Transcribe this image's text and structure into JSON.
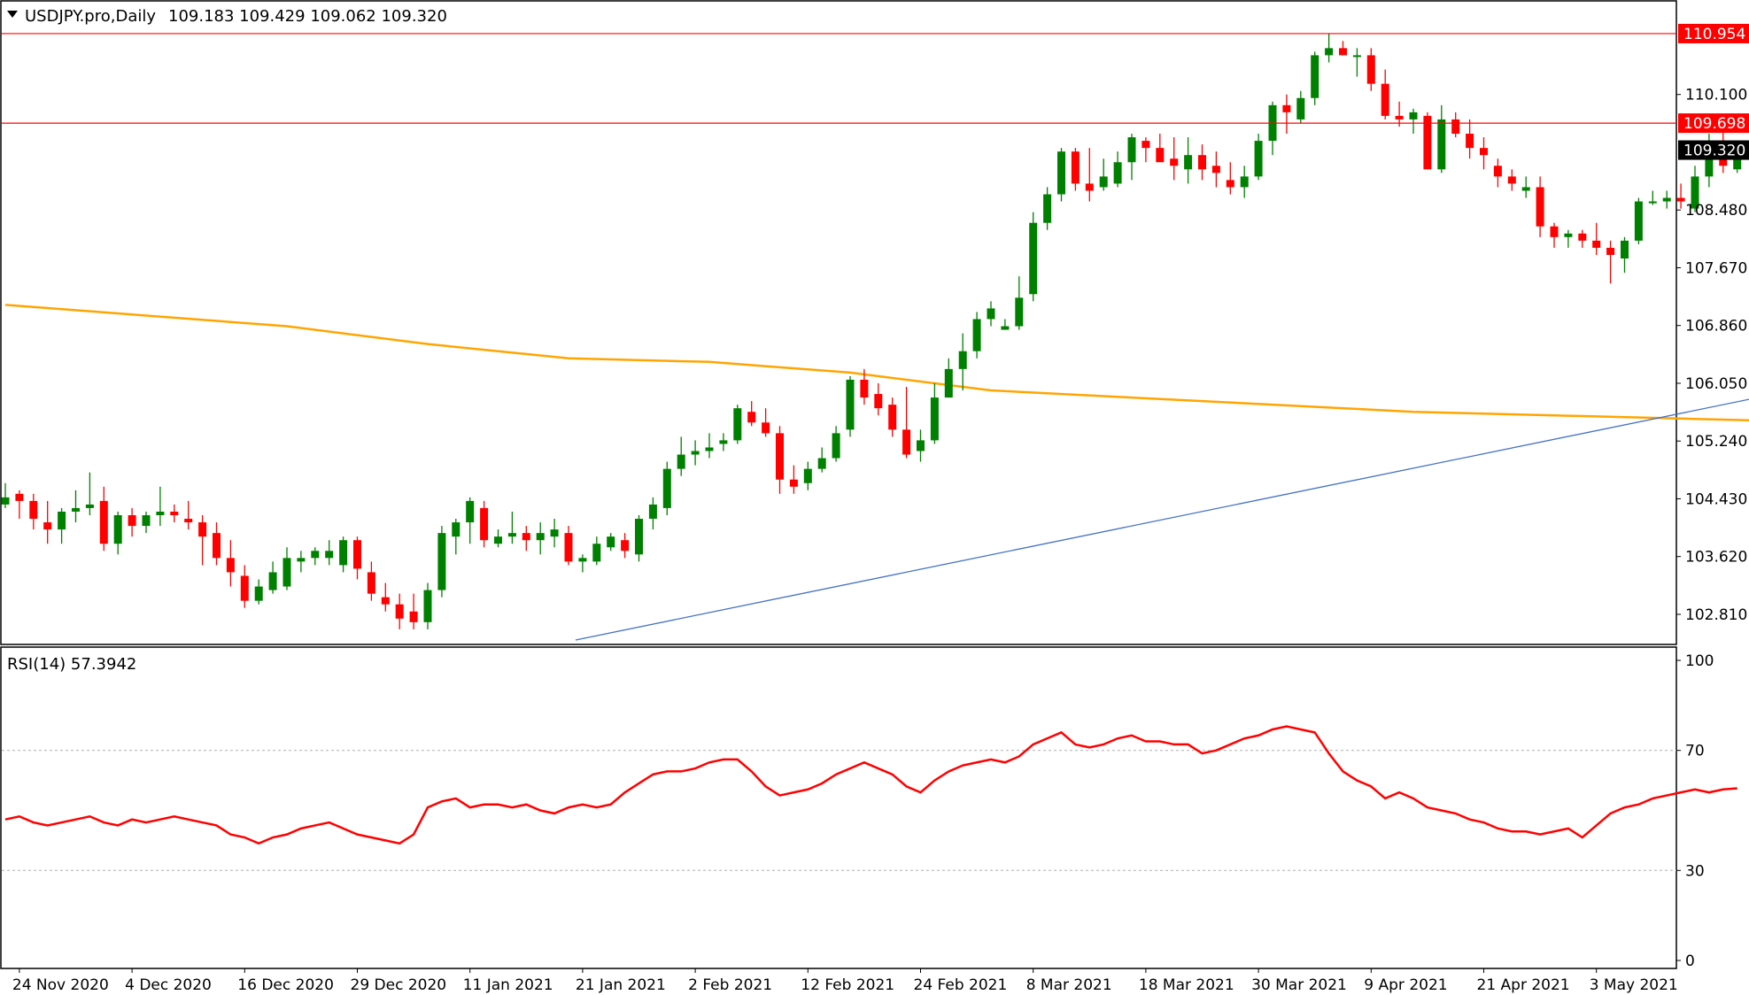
{
  "header": {
    "symbol": "USDJPY.pro,Daily",
    "ohlc": "109.183 109.429 109.062 109.320"
  },
  "rsi_label": "RSI(14) 57.3942",
  "colors": {
    "bull": "#008000",
    "bear": "#ff0000",
    "ma": "#ffa500",
    "trendline": "#4472c4",
    "hline": "#ff0000",
    "rsi": "#ff0000",
    "current_price_box": "#000000"
  },
  "chart_data": [
    {
      "type": "candlestick",
      "title": "",
      "ylim": [
        102.4,
        111.4
      ],
      "y_ticks": [
        "110.100",
        "108.480",
        "107.670",
        "106.860",
        "106.050",
        "105.240",
        "104.430",
        "103.620",
        "102.810"
      ],
      "x_labels": [
        "24 Nov 2020",
        "4 Dec 2020",
        "16 Dec 2020",
        "29 Dec 2020",
        "11 Jan 2021",
        "21 Jan 2021",
        "2 Feb 2021",
        "12 Feb 2021",
        "24 Feb 2021",
        "8 Mar 2021",
        "18 Mar 2021",
        "30 Mar 2021",
        "9 Apr 2021",
        "21 Apr 2021",
        "3 May 2021"
      ],
      "x_label_index": [
        1,
        9,
        17,
        25,
        33,
        41,
        49,
        57,
        65,
        73,
        81,
        89,
        97,
        105,
        113
      ],
      "candles": [
        [
          104.35,
          104.65,
          104.3,
          104.45
        ],
        [
          104.5,
          104.55,
          104.15,
          104.4
        ],
        [
          104.4,
          104.5,
          104.0,
          104.15
        ],
        [
          104.1,
          104.4,
          103.8,
          104.0
        ],
        [
          104.0,
          104.3,
          103.8,
          104.25
        ],
        [
          104.25,
          104.55,
          104.1,
          104.3
        ],
        [
          104.3,
          104.8,
          104.2,
          104.35
        ],
        [
          104.4,
          104.6,
          103.7,
          103.8
        ],
        [
          103.8,
          104.25,
          103.65,
          104.2
        ],
        [
          104.2,
          104.3,
          103.9,
          104.05
        ],
        [
          104.05,
          104.25,
          103.95,
          104.2
        ],
        [
          104.2,
          104.6,
          104.05,
          104.25
        ],
        [
          104.25,
          104.35,
          104.1,
          104.2
        ],
        [
          104.15,
          104.4,
          104.0,
          104.1
        ],
        [
          104.1,
          104.2,
          103.5,
          103.9
        ],
        [
          103.95,
          104.1,
          103.5,
          103.6
        ],
        [
          103.6,
          103.85,
          103.2,
          103.4
        ],
        [
          103.35,
          103.5,
          102.9,
          103.0
        ],
        [
          103.0,
          103.3,
          102.95,
          103.2
        ],
        [
          103.15,
          103.55,
          103.1,
          103.4
        ],
        [
          103.2,
          103.75,
          103.15,
          103.6
        ],
        [
          103.55,
          103.7,
          103.4,
          103.6
        ],
        [
          103.6,
          103.75,
          103.5,
          103.7
        ],
        [
          103.6,
          103.85,
          103.5,
          103.7
        ],
        [
          103.5,
          103.9,
          103.4,
          103.85
        ],
        [
          103.85,
          103.9,
          103.3,
          103.45
        ],
        [
          103.4,
          103.55,
          103.0,
          103.1
        ],
        [
          103.05,
          103.25,
          102.85,
          102.95
        ],
        [
          102.95,
          103.1,
          102.6,
          102.75
        ],
        [
          102.85,
          103.1,
          102.6,
          102.7
        ],
        [
          102.7,
          103.25,
          102.6,
          103.15
        ],
        [
          103.15,
          104.05,
          103.05,
          103.95
        ],
        [
          103.9,
          104.15,
          103.65,
          104.1
        ],
        [
          104.1,
          104.45,
          103.8,
          104.4
        ],
        [
          104.3,
          104.4,
          103.75,
          103.85
        ],
        [
          103.8,
          104.0,
          103.75,
          103.9
        ],
        [
          103.9,
          104.25,
          103.8,
          103.95
        ],
        [
          103.95,
          104.05,
          103.7,
          103.85
        ],
        [
          103.85,
          104.1,
          103.65,
          103.95
        ],
        [
          103.9,
          104.15,
          103.75,
          104.0
        ],
        [
          103.95,
          104.05,
          103.5,
          103.55
        ],
        [
          103.55,
          103.65,
          103.4,
          103.6
        ],
        [
          103.55,
          103.9,
          103.5,
          103.8
        ],
        [
          103.75,
          103.95,
          103.7,
          103.9
        ],
        [
          103.85,
          103.95,
          103.6,
          103.7
        ],
        [
          103.65,
          104.2,
          103.55,
          104.15
        ],
        [
          104.15,
          104.45,
          104.0,
          104.35
        ],
        [
          104.3,
          104.95,
          104.2,
          104.85
        ],
        [
          104.85,
          105.3,
          104.75,
          105.05
        ],
        [
          105.05,
          105.25,
          104.9,
          105.1
        ],
        [
          105.1,
          105.35,
          105.0,
          105.15
        ],
        [
          105.2,
          105.35,
          105.1,
          105.25
        ],
        [
          105.25,
          105.75,
          105.2,
          105.7
        ],
        [
          105.65,
          105.8,
          105.45,
          105.5
        ],
        [
          105.5,
          105.7,
          105.3,
          105.35
        ],
        [
          105.35,
          105.45,
          104.5,
          104.7
        ],
        [
          104.7,
          104.9,
          104.5,
          104.6
        ],
        [
          104.65,
          104.95,
          104.55,
          104.85
        ],
        [
          104.85,
          105.15,
          104.8,
          105.0
        ],
        [
          105.0,
          105.45,
          104.95,
          105.35
        ],
        [
          105.4,
          106.15,
          105.3,
          106.1
        ],
        [
          106.1,
          106.25,
          105.75,
          105.85
        ],
        [
          105.9,
          106.05,
          105.6,
          105.7
        ],
        [
          105.75,
          105.85,
          105.3,
          105.4
        ],
        [
          105.4,
          106.0,
          105.0,
          105.05
        ],
        [
          105.1,
          105.4,
          104.95,
          105.25
        ],
        [
          105.25,
          106.05,
          105.2,
          105.85
        ],
        [
          105.85,
          106.4,
          105.85,
          106.25
        ],
        [
          106.25,
          106.75,
          105.95,
          106.5
        ],
        [
          106.5,
          107.05,
          106.4,
          106.95
        ],
        [
          106.95,
          107.2,
          106.85,
          107.1
        ],
        [
          106.8,
          106.95,
          106.8,
          106.85
        ],
        [
          106.85,
          107.55,
          106.8,
          107.25
        ],
        [
          107.3,
          108.45,
          107.2,
          108.3
        ],
        [
          108.3,
          108.8,
          108.2,
          108.7
        ],
        [
          108.7,
          109.35,
          108.6,
          109.3
        ],
        [
          109.3,
          109.35,
          108.75,
          108.85
        ],
        [
          108.85,
          109.35,
          108.6,
          108.75
        ],
        [
          108.8,
          109.2,
          108.75,
          108.95
        ],
        [
          108.85,
          109.3,
          108.8,
          109.15
        ],
        [
          109.15,
          109.55,
          108.9,
          109.5
        ],
        [
          109.45,
          109.5,
          109.15,
          109.35
        ],
        [
          109.35,
          109.55,
          109.2,
          109.15
        ],
        [
          109.2,
          109.5,
          108.9,
          109.1
        ],
        [
          109.05,
          109.5,
          108.85,
          109.25
        ],
        [
          109.25,
          109.4,
          108.9,
          109.05
        ],
        [
          109.1,
          109.3,
          108.8,
          109.0
        ],
        [
          108.9,
          109.15,
          108.7,
          108.8
        ],
        [
          108.8,
          109.1,
          108.65,
          108.95
        ],
        [
          108.95,
          109.55,
          108.9,
          109.45
        ],
        [
          109.45,
          110.0,
          109.25,
          109.95
        ],
        [
          109.95,
          110.1,
          109.55,
          109.85
        ],
        [
          109.75,
          110.15,
          109.7,
          110.05
        ],
        [
          110.05,
          110.7,
          109.95,
          110.65
        ],
        [
          110.65,
          110.95,
          110.55,
          110.75
        ],
        [
          110.75,
          110.85,
          110.65,
          110.65
        ],
        [
          110.65,
          110.75,
          110.35,
          110.65
        ],
        [
          110.65,
          110.75,
          110.15,
          110.25
        ],
        [
          110.25,
          110.45,
          109.75,
          109.8
        ],
        [
          109.8,
          110.0,
          109.65,
          109.75
        ],
        [
          109.75,
          109.9,
          109.55,
          109.85
        ],
        [
          109.8,
          109.85,
          109.05,
          109.05
        ],
        [
          109.05,
          109.95,
          109.0,
          109.75
        ],
        [
          109.75,
          109.85,
          109.5,
          109.55
        ],
        [
          109.55,
          109.75,
          109.2,
          109.35
        ],
        [
          109.35,
          109.5,
          109.05,
          109.25
        ],
        [
          109.1,
          109.2,
          108.8,
          108.95
        ],
        [
          108.95,
          109.05,
          108.75,
          108.85
        ],
        [
          108.75,
          108.95,
          108.65,
          108.8
        ],
        [
          108.8,
          108.95,
          108.1,
          108.25
        ],
        [
          108.25,
          108.3,
          107.95,
          108.1
        ],
        [
          108.1,
          108.2,
          107.95,
          108.15
        ],
        [
          108.15,
          108.2,
          107.95,
          108.05
        ],
        [
          108.05,
          108.3,
          107.85,
          107.95
        ],
        [
          107.95,
          108.05,
          107.45,
          107.85
        ],
        [
          107.8,
          108.1,
          107.6,
          108.05
        ],
        [
          108.05,
          108.65,
          108.0,
          108.6
        ],
        [
          108.6,
          108.75,
          108.55,
          108.6
        ],
        [
          108.6,
          108.75,
          108.5,
          108.65
        ],
        [
          108.65,
          108.85,
          108.5,
          108.6
        ],
        [
          108.5,
          109.1,
          108.45,
          108.95
        ],
        [
          108.95,
          109.55,
          108.8,
          109.3
        ],
        [
          109.35,
          109.75,
          109.0,
          109.1
        ],
        [
          109.05,
          109.4,
          109.0,
          109.35
        ],
        [
          109.35,
          109.45,
          109.15,
          109.25
        ],
        [
          109.18,
          109.43,
          109.06,
          109.32
        ]
      ],
      "ma": [
        [
          0,
          107.15
        ],
        [
          10,
          107.0
        ],
        [
          20,
          106.85
        ],
        [
          30,
          106.6
        ],
        [
          40,
          106.4
        ],
        [
          50,
          106.35
        ],
        [
          60,
          106.2
        ],
        [
          70,
          105.95
        ],
        [
          80,
          105.85
        ],
        [
          90,
          105.75
        ],
        [
          100,
          105.65
        ],
        [
          110,
          105.6
        ],
        [
          120,
          105.55
        ],
        [
          130,
          105.5
        ],
        [
          140,
          105.52
        ],
        [
          150,
          105.53
        ],
        [
          160,
          105.55
        ],
        [
          170,
          105.62
        ],
        [
          180,
          105.7
        ]
      ],
      "trendline": {
        "p1": [
          40.5,
          102.45
        ],
        "p2": [
          182.5,
          108.2
        ]
      },
      "horizontal_lines": [
        {
          "price": 110.954,
          "label": "110.954"
        },
        {
          "price": 109.698,
          "label": "109.698"
        }
      ],
      "current_price": {
        "price": 109.32,
        "label": "109.320"
      }
    },
    {
      "type": "line",
      "title": "",
      "series": [
        {
          "values": [
            47,
            48,
            46,
            45,
            46,
            47,
            48,
            46,
            45,
            47,
            46,
            47,
            48,
            47,
            46,
            45,
            42,
            41,
            39,
            41,
            42,
            44,
            45,
            46,
            44,
            42,
            41,
            40,
            39,
            42,
            51,
            53,
            54,
            51,
            52,
            52,
            51,
            52,
            50,
            49,
            51,
            52,
            51,
            52,
            56,
            59,
            62,
            63,
            63,
            64,
            66,
            67,
            67,
            63,
            58,
            55,
            56,
            57,
            59,
            62,
            64,
            66,
            64,
            62,
            58,
            56,
            60,
            63,
            65,
            66,
            67,
            66,
            68,
            72,
            74,
            76,
            72,
            71,
            72,
            74,
            75,
            73,
            73,
            72,
            72,
            69,
            70,
            72,
            74,
            75,
            77,
            78,
            77,
            76,
            69,
            63,
            60,
            58,
            54,
            56,
            54,
            51,
            50,
            49,
            47,
            46,
            44,
            43,
            43,
            42,
            43,
            44,
            41,
            45,
            49,
            51,
            52,
            54,
            55,
            56,
            57,
            56,
            57,
            57.39
          ]
        }
      ],
      "ylim": [
        0,
        100
      ],
      "y_ticks": [
        "100",
        "70",
        "30",
        "0"
      ],
      "levels": [
        70,
        30
      ]
    }
  ]
}
